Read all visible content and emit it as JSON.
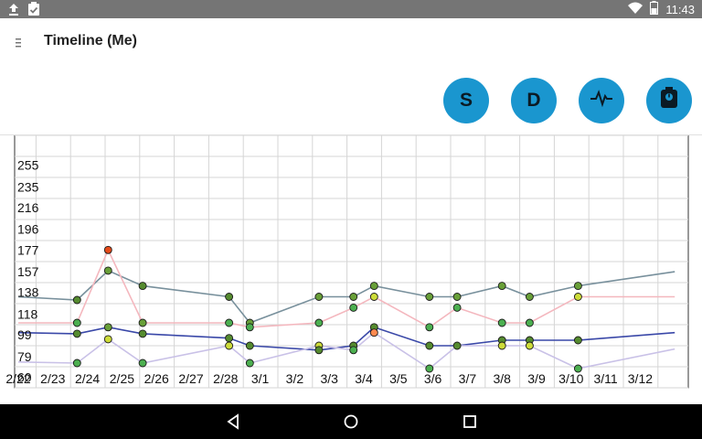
{
  "status_bar": {
    "time": "11:43",
    "left_icons": [
      "upload-icon",
      "clipboard-check-icon"
    ],
    "right_icons": [
      "wifi-icon",
      "battery-icon"
    ]
  },
  "header": {
    "title": "Timeline (Me)",
    "menu_icon": "menu-icon"
  },
  "actions": [
    {
      "label": "S",
      "icon": null
    },
    {
      "label": "D",
      "icon": null
    },
    {
      "label": "",
      "icon": "pulse-icon"
    },
    {
      "label": "",
      "icon": "scale-icon"
    }
  ],
  "nav": [
    "back-icon",
    "home-icon",
    "recents-icon"
  ],
  "chart_data": {
    "type": "line",
    "y_ticks": [
      "255",
      "235",
      "216",
      "196",
      "177",
      "157",
      "138",
      "118",
      "99",
      "79",
      "60"
    ],
    "x_ticks": [
      "2/22",
      "2/23",
      "2/24",
      "2/25",
      "2/26",
      "2/27",
      "2/28",
      "3/1",
      "3/2",
      "3/3",
      "3/4",
      "3/5",
      "3/6",
      "3/7",
      "3/8",
      "3/9",
      "3/10",
      "3/11",
      "3/12"
    ],
    "ylim": [
      60,
      255
    ],
    "grid": true,
    "series": [
      {
        "color": "#78909c",
        "points": [
          [
            0.0,
            134
          ],
          [
            1.7,
            131
          ],
          [
            2.6,
            158
          ],
          [
            3.6,
            144
          ],
          [
            6.1,
            134
          ],
          [
            6.7,
            110
          ],
          [
            8.7,
            134
          ],
          [
            9.7,
            134
          ],
          [
            10.3,
            144
          ],
          [
            11.9,
            134
          ],
          [
            12.7,
            134
          ],
          [
            14.0,
            144
          ],
          [
            14.8,
            134
          ],
          [
            16.2,
            144
          ],
          [
            19.0,
            157
          ]
        ]
      },
      {
        "color": "#f4b7be",
        "points": [
          [
            0.0,
            110
          ],
          [
            1.7,
            110
          ],
          [
            2.6,
            177
          ],
          [
            3.6,
            110
          ],
          [
            6.1,
            110
          ],
          [
            6.7,
            106
          ],
          [
            8.7,
            110
          ],
          [
            9.7,
            124
          ],
          [
            10.3,
            134
          ],
          [
            11.9,
            106
          ],
          [
            12.7,
            124
          ],
          [
            14.0,
            110
          ],
          [
            14.8,
            110
          ],
          [
            16.2,
            134
          ],
          [
            19.0,
            134
          ]
        ]
      },
      {
        "color": "#3a48a8",
        "points": [
          [
            0.0,
            101
          ],
          [
            1.7,
            100
          ],
          [
            2.6,
            106
          ],
          [
            3.6,
            100
          ],
          [
            6.1,
            96
          ],
          [
            6.7,
            89
          ],
          [
            8.7,
            85
          ],
          [
            9.7,
            89
          ],
          [
            10.3,
            106
          ],
          [
            11.9,
            89
          ],
          [
            12.7,
            89
          ],
          [
            14.0,
            94
          ],
          [
            14.8,
            94
          ],
          [
            16.2,
            94
          ],
          [
            19.0,
            101
          ]
        ]
      },
      {
        "color": "#c9c1e7",
        "points": [
          [
            0.0,
            74
          ],
          [
            1.7,
            73
          ],
          [
            2.6,
            95
          ],
          [
            3.6,
            73
          ],
          [
            6.1,
            89
          ],
          [
            6.7,
            73
          ],
          [
            8.7,
            89
          ],
          [
            9.7,
            85
          ],
          [
            10.3,
            101
          ],
          [
            11.9,
            68
          ],
          [
            12.7,
            89
          ],
          [
            14.0,
            89
          ],
          [
            14.8,
            89
          ],
          [
            16.2,
            68
          ],
          [
            19.0,
            86
          ]
        ]
      }
    ],
    "points": [
      {
        "x": 1.7,
        "y": 131,
        "color": "#558b2f"
      },
      {
        "x": 1.7,
        "y": 110,
        "color": "#4caf50"
      },
      {
        "x": 1.7,
        "y": 100,
        "color": "#558b2f"
      },
      {
        "x": 1.7,
        "y": 73,
        "color": "#4caf50"
      },
      {
        "x": 2.6,
        "y": 177,
        "color": "#e64a19"
      },
      {
        "x": 2.6,
        "y": 158,
        "color": "#689f38"
      },
      {
        "x": 2.6,
        "y": 106,
        "color": "#689f38"
      },
      {
        "x": 2.6,
        "y": 95,
        "color": "#cddc39"
      },
      {
        "x": 3.6,
        "y": 144,
        "color": "#558b2f"
      },
      {
        "x": 3.6,
        "y": 110,
        "color": "#689f38"
      },
      {
        "x": 3.6,
        "y": 100,
        "color": "#558b2f"
      },
      {
        "x": 3.6,
        "y": 73,
        "color": "#4caf50"
      },
      {
        "x": 6.1,
        "y": 134,
        "color": "#558b2f"
      },
      {
        "x": 6.1,
        "y": 110,
        "color": "#4caf50"
      },
      {
        "x": 6.1,
        "y": 96,
        "color": "#558b2f"
      },
      {
        "x": 6.1,
        "y": 89,
        "color": "#cddc39"
      },
      {
        "x": 6.7,
        "y": 110,
        "color": "#689f38"
      },
      {
        "x": 6.7,
        "y": 106,
        "color": "#4caf50"
      },
      {
        "x": 6.7,
        "y": 89,
        "color": "#558b2f"
      },
      {
        "x": 6.7,
        "y": 73,
        "color": "#4caf50"
      },
      {
        "x": 8.7,
        "y": 134,
        "color": "#689f38"
      },
      {
        "x": 8.7,
        "y": 110,
        "color": "#4caf50"
      },
      {
        "x": 8.7,
        "y": 89,
        "color": "#cddc39"
      },
      {
        "x": 8.7,
        "y": 85,
        "color": "#558b2f"
      },
      {
        "x": 9.7,
        "y": 134,
        "color": "#689f38"
      },
      {
        "x": 9.7,
        "y": 124,
        "color": "#4caf50"
      },
      {
        "x": 9.7,
        "y": 89,
        "color": "#558b2f"
      },
      {
        "x": 9.7,
        "y": 85,
        "color": "#4caf50"
      },
      {
        "x": 10.3,
        "y": 144,
        "color": "#689f38"
      },
      {
        "x": 10.3,
        "y": 134,
        "color": "#cddc39"
      },
      {
        "x": 10.3,
        "y": 106,
        "color": "#558b2f"
      },
      {
        "x": 10.3,
        "y": 101,
        "color": "#ff8a50"
      },
      {
        "x": 11.9,
        "y": 134,
        "color": "#689f38"
      },
      {
        "x": 11.9,
        "y": 106,
        "color": "#4caf50"
      },
      {
        "x": 11.9,
        "y": 89,
        "color": "#558b2f"
      },
      {
        "x": 11.9,
        "y": 68,
        "color": "#4caf50"
      },
      {
        "x": 12.7,
        "y": 134,
        "color": "#689f38"
      },
      {
        "x": 12.7,
        "y": 124,
        "color": "#4caf50"
      },
      {
        "x": 12.7,
        "y": 89,
        "color": "#558b2f"
      },
      {
        "x": 14.0,
        "y": 144,
        "color": "#689f38"
      },
      {
        "x": 14.0,
        "y": 110,
        "color": "#4caf50"
      },
      {
        "x": 14.0,
        "y": 94,
        "color": "#558b2f"
      },
      {
        "x": 14.0,
        "y": 89,
        "color": "#cddc39"
      },
      {
        "x": 14.8,
        "y": 134,
        "color": "#689f38"
      },
      {
        "x": 14.8,
        "y": 110,
        "color": "#4caf50"
      },
      {
        "x": 14.8,
        "y": 94,
        "color": "#558b2f"
      },
      {
        "x": 14.8,
        "y": 89,
        "color": "#cddc39"
      },
      {
        "x": 16.2,
        "y": 144,
        "color": "#689f38"
      },
      {
        "x": 16.2,
        "y": 134,
        "color": "#cddc39"
      },
      {
        "x": 16.2,
        "y": 94,
        "color": "#558b2f"
      },
      {
        "x": 16.2,
        "y": 68,
        "color": "#4caf50"
      }
    ]
  }
}
